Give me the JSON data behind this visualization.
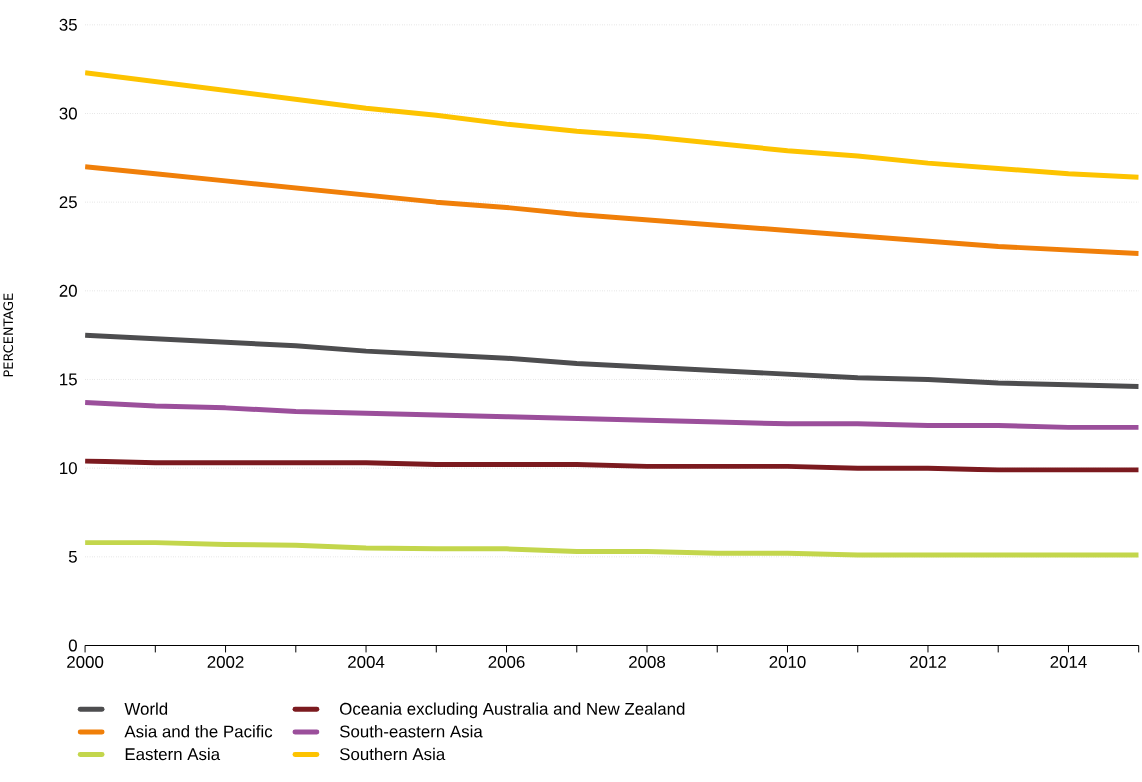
{
  "chart_data": {
    "type": "line",
    "ylabel": "PERCENTAGE",
    "x": [
      2000,
      2001,
      2002,
      2003,
      2004,
      2005,
      2006,
      2007,
      2008,
      2009,
      2010,
      2011,
      2012,
      2013,
      2014,
      2015
    ],
    "series": [
      {
        "name": "World",
        "color": "#4d4d4f",
        "values": [
          17.5,
          17.3,
          17.1,
          16.9,
          16.6,
          16.4,
          16.2,
          15.9,
          15.7,
          15.5,
          15.3,
          15.1,
          15.0,
          14.8,
          14.7,
          14.6
        ]
      },
      {
        "name": "Oceania excluding Australia and New Zealand",
        "color": "#7b1a1f",
        "values": [
          10.4,
          10.3,
          10.3,
          10.3,
          10.3,
          10.2,
          10.2,
          10.2,
          10.1,
          10.1,
          10.1,
          10.0,
          10.0,
          9.9,
          9.9,
          9.9
        ]
      },
      {
        "name": "Asia and the Pacific",
        "color": "#f07f09",
        "values": [
          27.0,
          26.6,
          26.2,
          25.8,
          25.4,
          25.0,
          24.7,
          24.3,
          24.0,
          23.7,
          23.4,
          23.1,
          22.8,
          22.5,
          22.3,
          22.1
        ]
      },
      {
        "name": "South-eastern Asia",
        "color": "#9b4f9b",
        "values": [
          13.7,
          13.5,
          13.4,
          13.2,
          13.1,
          13.0,
          12.9,
          12.8,
          12.7,
          12.6,
          12.5,
          12.5,
          12.4,
          12.4,
          12.3,
          12.3
        ]
      },
      {
        "name": "Eastern Asia",
        "color": "#c3d64c",
        "values": [
          5.8,
          5.8,
          5.7,
          5.65,
          5.5,
          5.45,
          5.45,
          5.3,
          5.3,
          5.2,
          5.2,
          5.1,
          5.1,
          5.1,
          5.1,
          5.1
        ]
      },
      {
        "name": "Southern Asia",
        "color": "#fdc300",
        "values": [
          32.3,
          31.8,
          31.3,
          30.8,
          30.3,
          29.9,
          29.4,
          29.0,
          28.7,
          28.3,
          27.9,
          27.6,
          27.2,
          26.9,
          26.6,
          26.4
        ]
      }
    ],
    "xlim": [
      2000,
      2015
    ],
    "xticks": [
      2000,
      {
        "value": 2001,
        "label": null
      },
      2002,
      {
        "value": 2003,
        "label": null
      },
      2004,
      {
        "value": 2005,
        "label": null
      },
      2006,
      {
        "value": 2007,
        "label": null
      },
      2008,
      {
        "value": 2009,
        "label": null
      },
      2010,
      {
        "value": 2011,
        "label": null
      },
      2012,
      {
        "value": 2013,
        "label": null
      },
      2014,
      {
        "value": 2015,
        "label": null
      }
    ],
    "ylim": [
      0,
      35
    ],
    "yticks": [
      0,
      5,
      10,
      15,
      20,
      25,
      30,
      35
    ],
    "grid": "y",
    "legend": "bottom",
    "marker": "none",
    "line_style": "solid"
  }
}
